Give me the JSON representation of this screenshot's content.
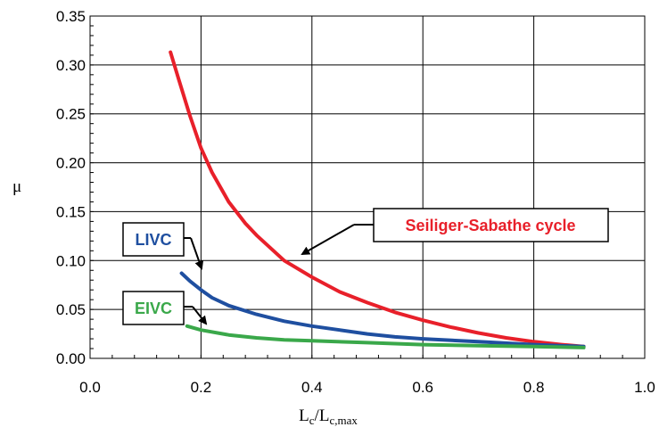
{
  "chart_data": {
    "type": "line",
    "xlabel": {
      "main": "L",
      "sub1": "c",
      "mid": "/L",
      "sub2": "c,max"
    },
    "ylabel": "μ",
    "xlim": [
      0.0,
      1.0
    ],
    "ylim": [
      0.0,
      0.35
    ],
    "xticks": [
      "0.0",
      "0.2",
      "0.4",
      "0.6",
      "0.8",
      "1.0"
    ],
    "yticks": [
      "0.00",
      "0.05",
      "0.10",
      "0.15",
      "0.20",
      "0.25",
      "0.30",
      "0.35"
    ],
    "grid": true,
    "colors": {
      "red": "#e8202a",
      "blue": "#1f4fa0",
      "green": "#3aa84a"
    },
    "series": [
      {
        "name": "Seiliger-Sabathe cycle",
        "color": "#e8202a",
        "x": [
          0.145,
          0.16,
          0.18,
          0.2,
          0.22,
          0.25,
          0.28,
          0.3,
          0.35,
          0.4,
          0.45,
          0.5,
          0.55,
          0.6,
          0.65,
          0.7,
          0.75,
          0.8,
          0.85,
          0.89
        ],
        "y": [
          0.313,
          0.285,
          0.248,
          0.215,
          0.19,
          0.16,
          0.138,
          0.126,
          0.1,
          0.083,
          0.068,
          0.057,
          0.047,
          0.039,
          0.032,
          0.026,
          0.021,
          0.017,
          0.014,
          0.012
        ]
      },
      {
        "name": "LIVC",
        "color": "#1f4fa0",
        "x": [
          0.165,
          0.18,
          0.2,
          0.22,
          0.25,
          0.3,
          0.35,
          0.4,
          0.45,
          0.5,
          0.55,
          0.6,
          0.7,
          0.8,
          0.89
        ],
        "y": [
          0.087,
          0.079,
          0.07,
          0.062,
          0.054,
          0.045,
          0.038,
          0.033,
          0.029,
          0.025,
          0.022,
          0.02,
          0.017,
          0.014,
          0.012
        ]
      },
      {
        "name": "EIVC",
        "color": "#3aa84a",
        "x": [
          0.175,
          0.2,
          0.25,
          0.3,
          0.35,
          0.4,
          0.5,
          0.6,
          0.7,
          0.8,
          0.89
        ],
        "y": [
          0.033,
          0.029,
          0.024,
          0.021,
          0.019,
          0.018,
          0.016,
          0.014,
          0.013,
          0.012,
          0.011
        ]
      }
    ],
    "annotations": [
      {
        "text": "Seiliger-Sabathe cycle",
        "color": "#e8202a",
        "points_to": [
          0.38,
          0.107
        ]
      },
      {
        "text": "LIVC",
        "color": "#1f4fa0",
        "points_to": [
          0.21,
          0.087
        ]
      },
      {
        "text": "EIVC",
        "color": "#3aa84a",
        "points_to": [
          0.21,
          0.036
        ]
      }
    ]
  }
}
